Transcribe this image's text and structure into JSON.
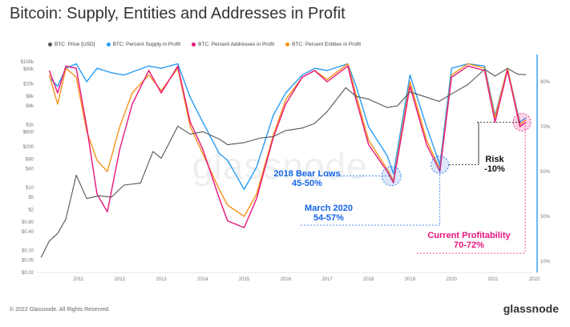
{
  "title": "Bitcoin: Supply, Entities and Addresses in Profit",
  "footer": {
    "copyright": "© 2022 Glassnode. All Rights Reserved.",
    "logo": "glassnode"
  },
  "watermark": "glassnode",
  "chart_data": {
    "type": "line",
    "x_ticks": [
      "2011",
      "2012",
      "2013",
      "2014",
      "2015",
      "2016",
      "2017",
      "2018",
      "2019",
      "2020",
      "2021",
      "2022"
    ],
    "y_left_ticks": [
      "$100k",
      "$60k",
      "$20k",
      "$8k",
      "$4k",
      "$1k",
      "$600",
      "$200",
      "$80",
      "$40",
      "$10",
      "$5",
      "$2",
      "$0.80",
      "$0.40",
      "$0.10",
      "$0.05",
      "$0.02"
    ],
    "y_right_ticks": [
      "90%",
      "70%",
      "50%",
      "30%",
      "10%"
    ],
    "y_left_scale": "log",
    "legend_position": "top-left",
    "colors": {
      "price": "#555555",
      "supply": "#2a9df4",
      "addresses": "#e8157c",
      "entities": "#f7931a",
      "annotation_blue": "#1565e8",
      "annotation_pink": "#e8157c"
    },
    "series": [
      {
        "name": "BTC: Price [USD]",
        "axis": "left",
        "x": [
          2010.6,
          2010.8,
          2011.0,
          2011.2,
          2011.45,
          2011.7,
          2012.0,
          2012.3,
          2012.6,
          2013.0,
          2013.3,
          2013.5,
          2013.9,
          2014.2,
          2014.5,
          2014.9,
          2015.1,
          2015.5,
          2015.9,
          2016.2,
          2016.5,
          2016.9,
          2017.2,
          2017.5,
          2017.95,
          2018.2,
          2018.5,
          2018.95,
          2019.2,
          2019.5,
          2019.9,
          2020.2,
          2020.5,
          2020.9,
          2021.3,
          2021.55,
          2021.85,
          2022.1,
          2022.3
        ],
        "y": [
          0.06,
          0.2,
          0.35,
          1.0,
          25,
          4.5,
          5.5,
          5,
          12,
          14,
          140,
          85,
          900,
          500,
          600,
          350,
          230,
          270,
          380,
          420,
          650,
          780,
          1100,
          2600,
          15000,
          8000,
          6500,
          3500,
          4000,
          11000,
          7500,
          5500,
          9500,
          19000,
          58000,
          35000,
          62000,
          40000,
          39000
        ]
      },
      {
        "name": "BTC: Percent Supply in Profit",
        "axis": "right",
        "x": [
          2010.8,
          2011.0,
          2011.2,
          2011.45,
          2011.7,
          2011.95,
          2012.3,
          2012.6,
          2012.9,
          2013.2,
          2013.5,
          2013.9,
          2014.2,
          2014.5,
          2014.9,
          2015.1,
          2015.5,
          2015.8,
          2016.2,
          2016.5,
          2016.9,
          2017.2,
          2017.5,
          2018.0,
          2018.2,
          2018.5,
          2018.95,
          2019.1,
          2019.5,
          2019.9,
          2020.22,
          2020.5,
          2020.9,
          2021.3,
          2021.55,
          2021.85,
          2022.15,
          2022.3
        ],
        "y": [
          92,
          88,
          96,
          98,
          90,
          96,
          94,
          93,
          95,
          97,
          96,
          98,
          83,
          72,
          58,
          55,
          42,
          52,
          75,
          85,
          93,
          96,
          95,
          98,
          88,
          70,
          57,
          49,
          93,
          70,
          53,
          96,
          98,
          97,
          75,
          96,
          72,
          74
        ]
      },
      {
        "name": "BTC: Percent Addresses in Profit",
        "axis": "right",
        "x": [
          2010.8,
          2011.0,
          2011.2,
          2011.45,
          2011.7,
          2011.95,
          2012.2,
          2012.5,
          2012.8,
          2013.2,
          2013.5,
          2013.9,
          2014.2,
          2014.5,
          2014.9,
          2015.1,
          2015.5,
          2015.8,
          2016.2,
          2016.5,
          2016.9,
          2017.2,
          2017.5,
          2018.0,
          2018.2,
          2018.5,
          2018.95,
          2019.1,
          2019.5,
          2019.9,
          2020.22,
          2020.5,
          2020.9,
          2021.3,
          2021.55,
          2021.85,
          2022.15,
          2022.3
        ],
        "y": [
          95,
          85,
          97,
          96,
          70,
          40,
          32,
          60,
          80,
          95,
          85,
          97,
          72,
          60,
          38,
          28,
          25,
          38,
          65,
          80,
          92,
          95,
          90,
          97,
          82,
          62,
          50,
          45,
          88,
          62,
          50,
          92,
          97,
          95,
          72,
          95,
          70,
          72
        ]
      },
      {
        "name": "BTC: Percent Entities in Profit",
        "axis": "right",
        "x": [
          2010.8,
          2011.0,
          2011.2,
          2011.45,
          2011.7,
          2011.95,
          2012.2,
          2012.5,
          2012.8,
          2013.2,
          2013.5,
          2013.9,
          2014.2,
          2014.5,
          2014.9,
          2015.1,
          2015.5,
          2015.8,
          2016.2,
          2016.5,
          2016.9,
          2017.2,
          2017.5,
          2018.0,
          2018.2,
          2018.5,
          2018.95,
          2019.1,
          2019.5,
          2019.9,
          2020.22,
          2020.5,
          2020.9,
          2021.3,
          2021.55,
          2021.85,
          2022.15,
          2022.3
        ],
        "y": [
          93,
          80,
          96,
          92,
          68,
          55,
          50,
          70,
          85,
          93,
          86,
          96,
          70,
          58,
          42,
          35,
          30,
          40,
          66,
          82,
          92,
          95,
          91,
          98,
          84,
          64,
          51,
          46,
          90,
          64,
          51,
          93,
          98,
          96,
          74,
          96,
          71,
          73
        ]
      }
    ],
    "annotations": [
      {
        "text_1": "2018 Bear Lows",
        "text_2": "45-50%",
        "color": "annotation_blue"
      },
      {
        "text_1": "March 2020",
        "text_2": "54-57%",
        "color": "annotation_blue"
      },
      {
        "text_1": "Risk",
        "text_2": "-10%",
        "color": "black"
      },
      {
        "text_1": "Current Profitability",
        "text_2": "70-72%",
        "color": "annotation_pink"
      }
    ]
  }
}
